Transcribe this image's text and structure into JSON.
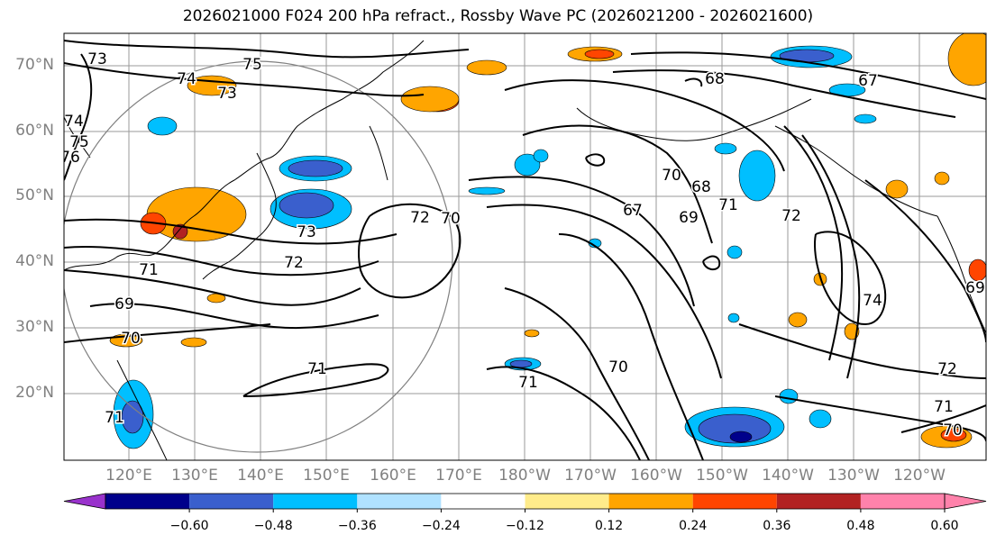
{
  "title": "2026021000 F024 200 hPa refract., Rossby Wave PC (2026021200 - 2026021600)",
  "map": {
    "lat_range": [
      10,
      75
    ],
    "lon_range_east": [
      110,
      250
    ],
    "lat_labels": [
      "70°N",
      "60°N",
      "50°N",
      "40°N",
      "30°N",
      "20°N"
    ],
    "lon_labels": [
      "120°E",
      "130°E",
      "140°E",
      "150°E",
      "160°E",
      "170°E",
      "180°W",
      "170°W",
      "160°W",
      "150°W",
      "140°W",
      "130°W",
      "120°W"
    ],
    "gridlines": true,
    "contour_labels": [
      "73",
      "74",
      "75",
      "73",
      "74",
      "75",
      "76",
      "68",
      "67",
      "72",
      "70",
      "73",
      "72",
      "71",
      "69",
      "70",
      "71",
      "71",
      "70",
      "70",
      "67",
      "68",
      "69",
      "71",
      "72",
      "74",
      "69",
      "72",
      "71",
      "70",
      "71"
    ]
  },
  "colorbar": {
    "tick_labels": [
      "−0.60",
      "−0.48",
      "−0.36",
      "−0.24",
      "−0.12",
      "0.12",
      "0.24",
      "0.36",
      "0.48",
      "0.60"
    ],
    "colors": [
      "#9932CC",
      "#00008B",
      "#3A5FCD",
      "#00BFFF",
      "#B0E2FF",
      "#FFFFFF",
      "#FFEC8B",
      "#FFA500",
      "#FF4500",
      "#B22222",
      "#FF82AB"
    ],
    "extend": "both"
  }
}
